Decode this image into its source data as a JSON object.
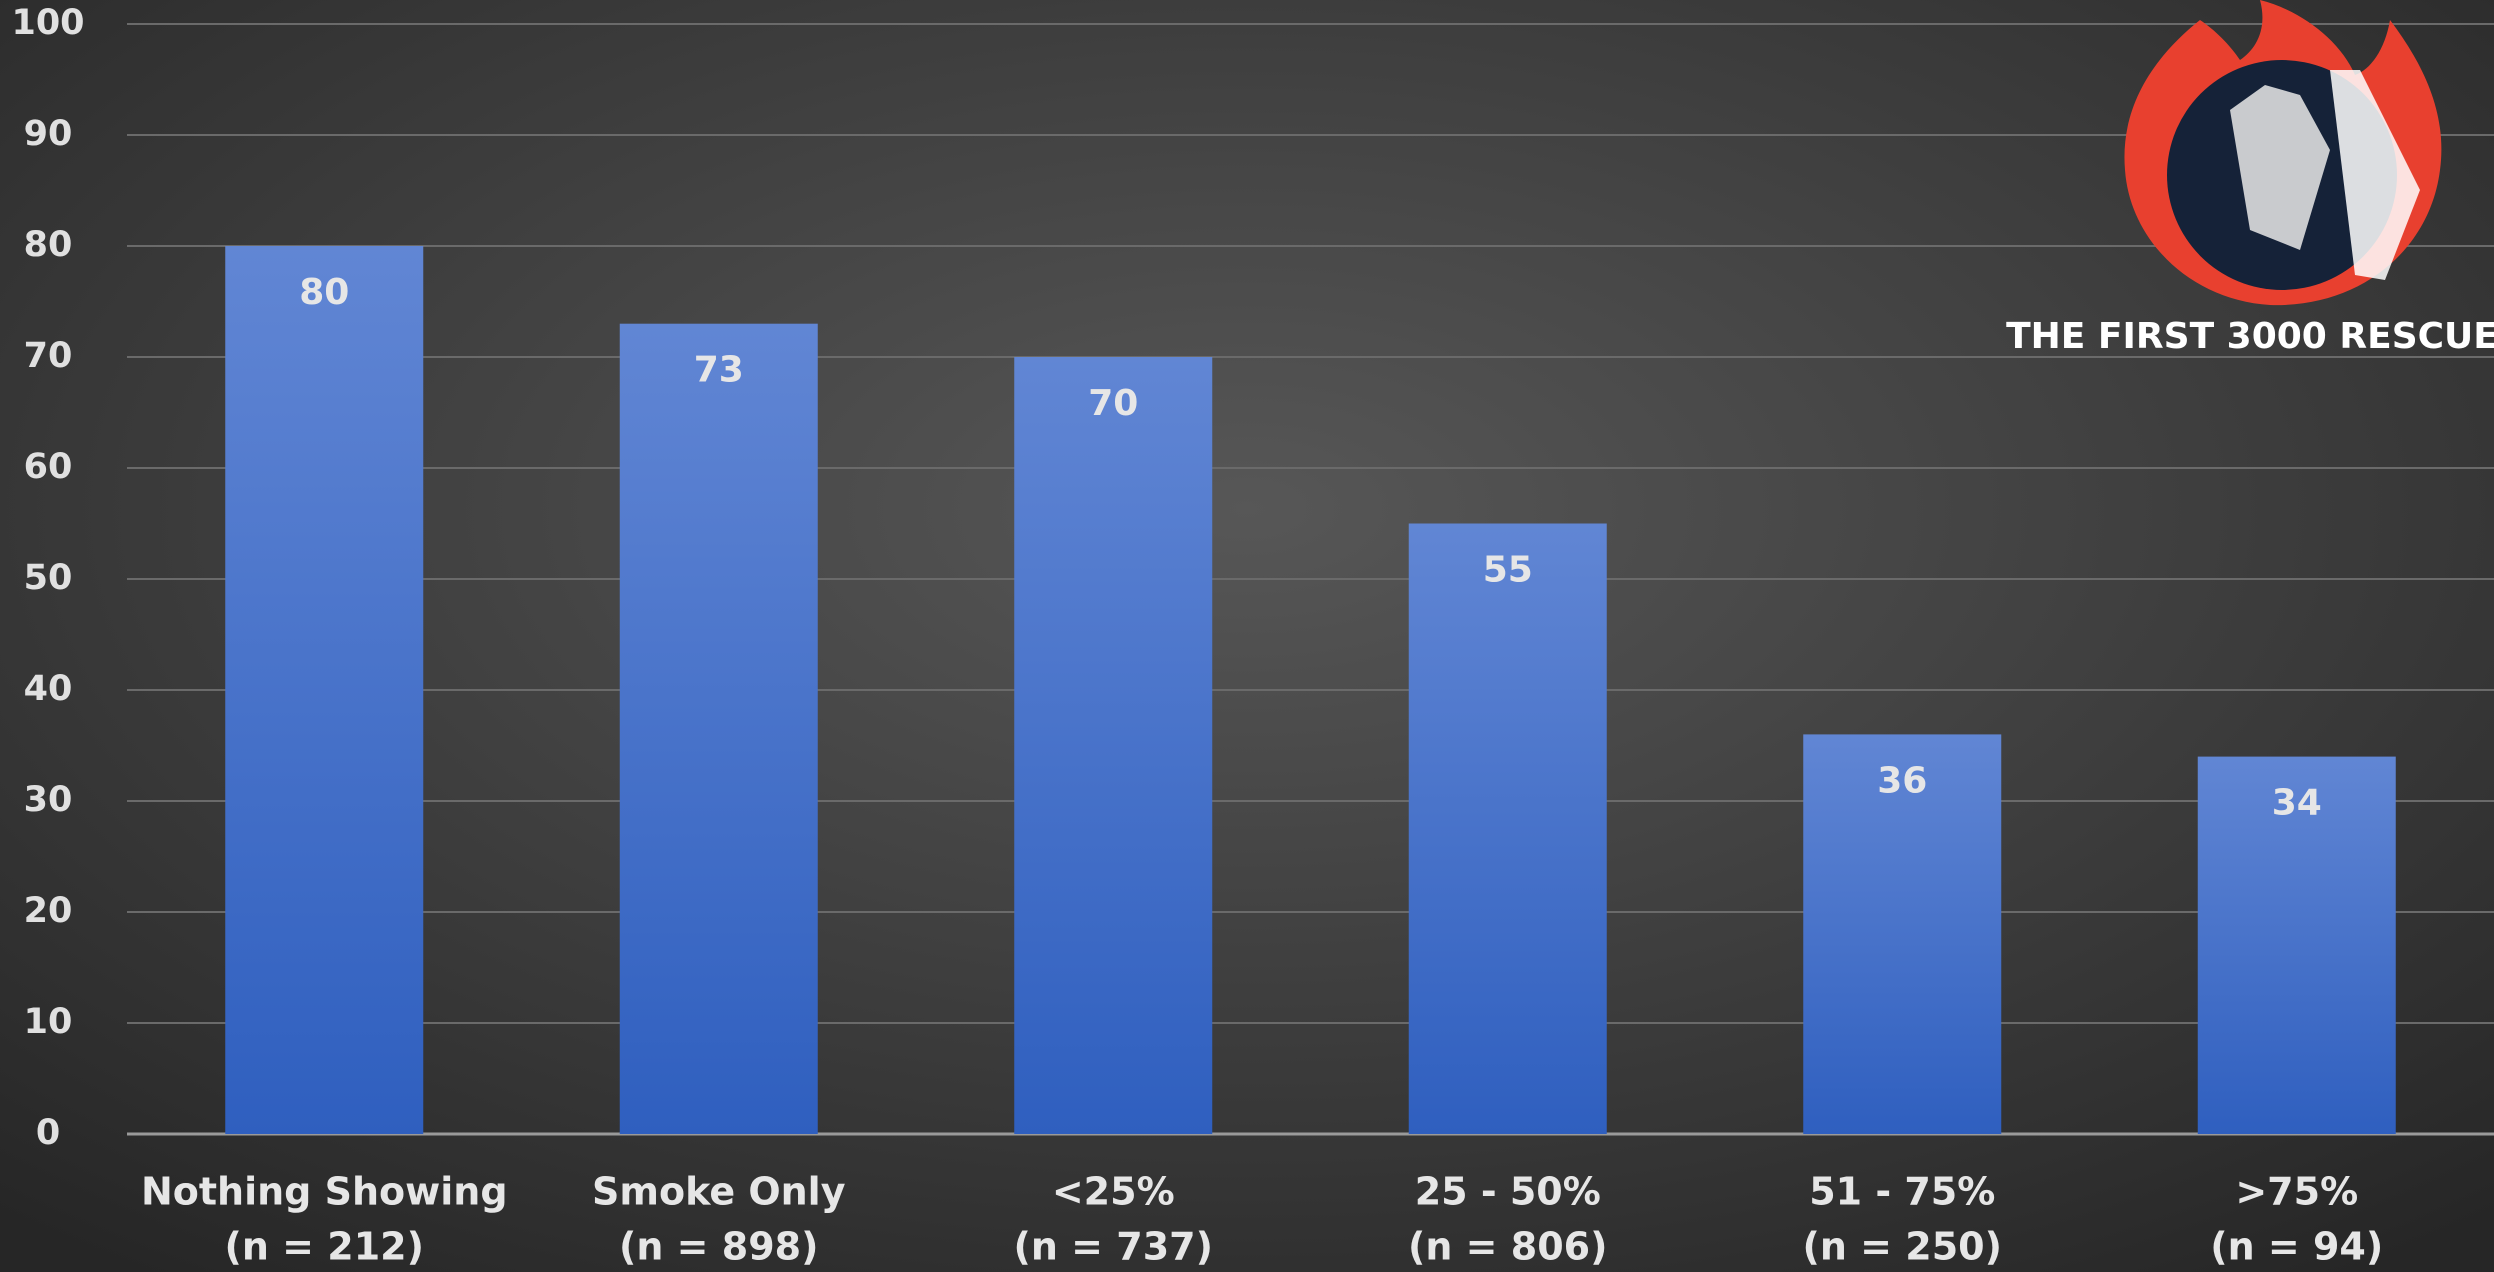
{
  "chart_data": {
    "type": "bar",
    "categories": [
      [
        "Nothing Showing",
        "(n = 212)"
      ],
      [
        "Smoke Only",
        "(n = 898)"
      ],
      [
        "<25%",
        "(n = 737)"
      ],
      [
        "25 - 50%",
        "(n = 806)"
      ],
      [
        "51 - 75%",
        "(n = 250)"
      ],
      [
        ">75%",
        "(n = 94)"
      ]
    ],
    "values": [
      80,
      73,
      70,
      55,
      36,
      34
    ],
    "color": "#4472c4",
    "ylim": [
      0,
      100
    ],
    "yticks": [
      0,
      10,
      20,
      30,
      40,
      50,
      60,
      70,
      80,
      90,
      100
    ],
    "grid": true
  },
  "logo": {
    "text": "THE FIRST 3000 RESCUE"
  }
}
